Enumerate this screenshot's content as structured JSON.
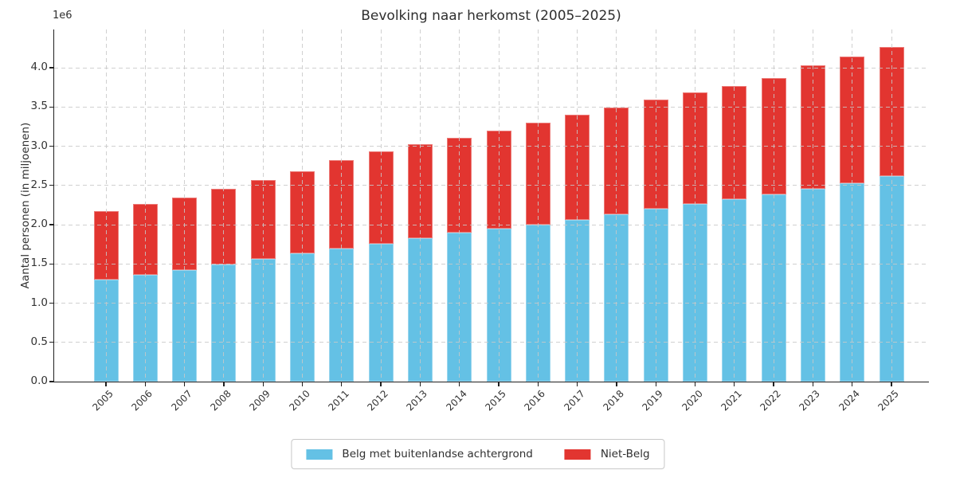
{
  "chart_data": {
    "type": "bar",
    "stacked": true,
    "title": "Bevolking naar herkomst (2005–2025)",
    "ylabel": "Aantal personen (in miljoenen)",
    "xlabel": "",
    "y_offset_label": "1e6",
    "grid": true,
    "legend_position": "bottom-center",
    "ylim": [
      0,
      4400000
    ],
    "ytick_values": [
      0,
      500000,
      1000000,
      1500000,
      2000000,
      2500000,
      3000000,
      3500000,
      4000000
    ],
    "ytick_labels": [
      "0.0",
      "0.5",
      "1.0",
      "1.5",
      "2.0",
      "2.5",
      "3.0",
      "3.5",
      "4.0"
    ],
    "categories": [
      "2005",
      "2006",
      "2007",
      "2008",
      "2009",
      "2010",
      "2011",
      "2012",
      "2013",
      "2014",
      "2015",
      "2016",
      "2017",
      "2018",
      "2019",
      "2020",
      "2021",
      "2022",
      "2023",
      "2024",
      "2025"
    ],
    "series": [
      {
        "name": "Belg met buitenlandse achtergrond",
        "color": "#64C1E5",
        "values": [
          1300000,
          1360000,
          1420000,
          1490000,
          1560000,
          1630000,
          1700000,
          1760000,
          1830000,
          1900000,
          1950000,
          2000000,
          2060000,
          2130000,
          2200000,
          2260000,
          2320000,
          2390000,
          2460000,
          2530000,
          2620000
        ]
      },
      {
        "name": "Niet-Belg",
        "color": "#E23530",
        "values": [
          870000,
          900000,
          930000,
          970000,
          1010000,
          1050000,
          1120000,
          1170000,
          1200000,
          1210000,
          1250000,
          1300000,
          1340000,
          1360000,
          1390000,
          1430000,
          1450000,
          1480000,
          1570000,
          1610000,
          1640000
        ]
      }
    ],
    "totals": [
      2170000,
      2260000,
      2350000,
      2460000,
      2570000,
      2680000,
      2820000,
      2930000,
      3030000,
      3110000,
      3200000,
      3300000,
      3400000,
      3490000,
      3590000,
      3690000,
      3770000,
      3870000,
      4030000,
      4140000,
      4260000
    ]
  }
}
